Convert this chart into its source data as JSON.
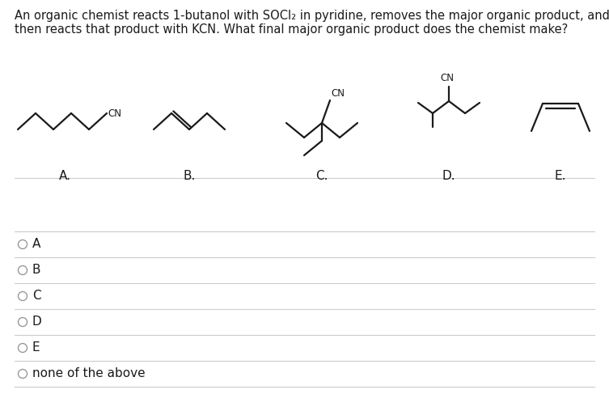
{
  "title_line1": "An organic chemist reacts 1-butanol with SOCl₂ in pyridine, removes the major organic product, and",
  "title_line2": "then reacts that product with KCN. What final major organic product does the chemist make?",
  "bg_color": "#ffffff",
  "text_color": "#1a1a1a",
  "line_color": "#1a1a1a",
  "sep_color": "#cccccc",
  "radio_color": "#999999",
  "font_size_title": 10.5,
  "font_size_mol_label": 11,
  "font_size_choice": 11,
  "font_size_cn": 8.5,
  "choice_labels": [
    "A",
    "B",
    "C",
    "D",
    "E",
    "none of the above"
  ]
}
